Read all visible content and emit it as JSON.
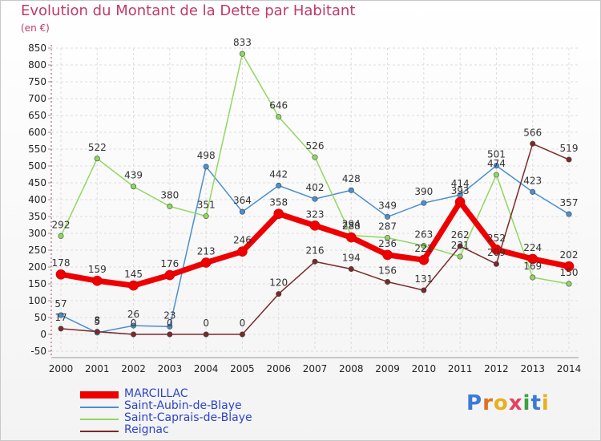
{
  "chart_data": {
    "type": "line",
    "title": "Evolution du Montant de la Dette par Habitant",
    "ylabel": "(en €)",
    "xlabel": "",
    "x": [
      2000,
      2001,
      2002,
      2003,
      2004,
      2005,
      2006,
      2007,
      2008,
      2009,
      2010,
      2011,
      2012,
      2013,
      2014
    ],
    "ylim": [
      -50,
      850
    ],
    "yticks": [
      -50,
      0,
      50,
      100,
      150,
      200,
      250,
      300,
      350,
      400,
      450,
      500,
      550,
      600,
      650,
      700,
      750,
      800,
      850
    ],
    "grid": true,
    "legend": "bottom-left",
    "series": [
      {
        "name": "MARCILLAC",
        "color": "#ee0000",
        "width": 7,
        "values": [
          178,
          159,
          145,
          176,
          213,
          246,
          358,
          323,
          288,
          236,
          221,
          393,
          252,
          224,
          202
        ]
      },
      {
        "name": "Saint-Aubin-de-Blaye",
        "color": "#4a8fd0",
        "width": 1.5,
        "values": [
          57,
          5,
          26,
          23,
          498,
          364,
          442,
          402,
          428,
          349,
          390,
          414,
          501,
          423,
          357
        ]
      },
      {
        "name": "Saint-Caprais-de-Blaye",
        "color": "#8fd860",
        "width": 1.5,
        "values": [
          292,
          522,
          439,
          380,
          351,
          833,
          646,
          526,
          294,
          287,
          263,
          231,
          474,
          169,
          150
        ]
      },
      {
        "name": "Reignac",
        "color": "#7a2a2a",
        "width": 1.5,
        "values": [
          17,
          8,
          0,
          0,
          0,
          0,
          120,
          216,
          194,
          156,
          131,
          262,
          209,
          566,
          519
        ]
      }
    ]
  },
  "logo": {
    "letters": [
      "P",
      "r",
      "o",
      "x",
      "i",
      "t",
      "i"
    ],
    "colors": [
      "#3a7ad8",
      "#e07020",
      "#e8b020",
      "#e84060",
      "#40a040",
      "#3a7ad8",
      "#e8b020"
    ]
  }
}
